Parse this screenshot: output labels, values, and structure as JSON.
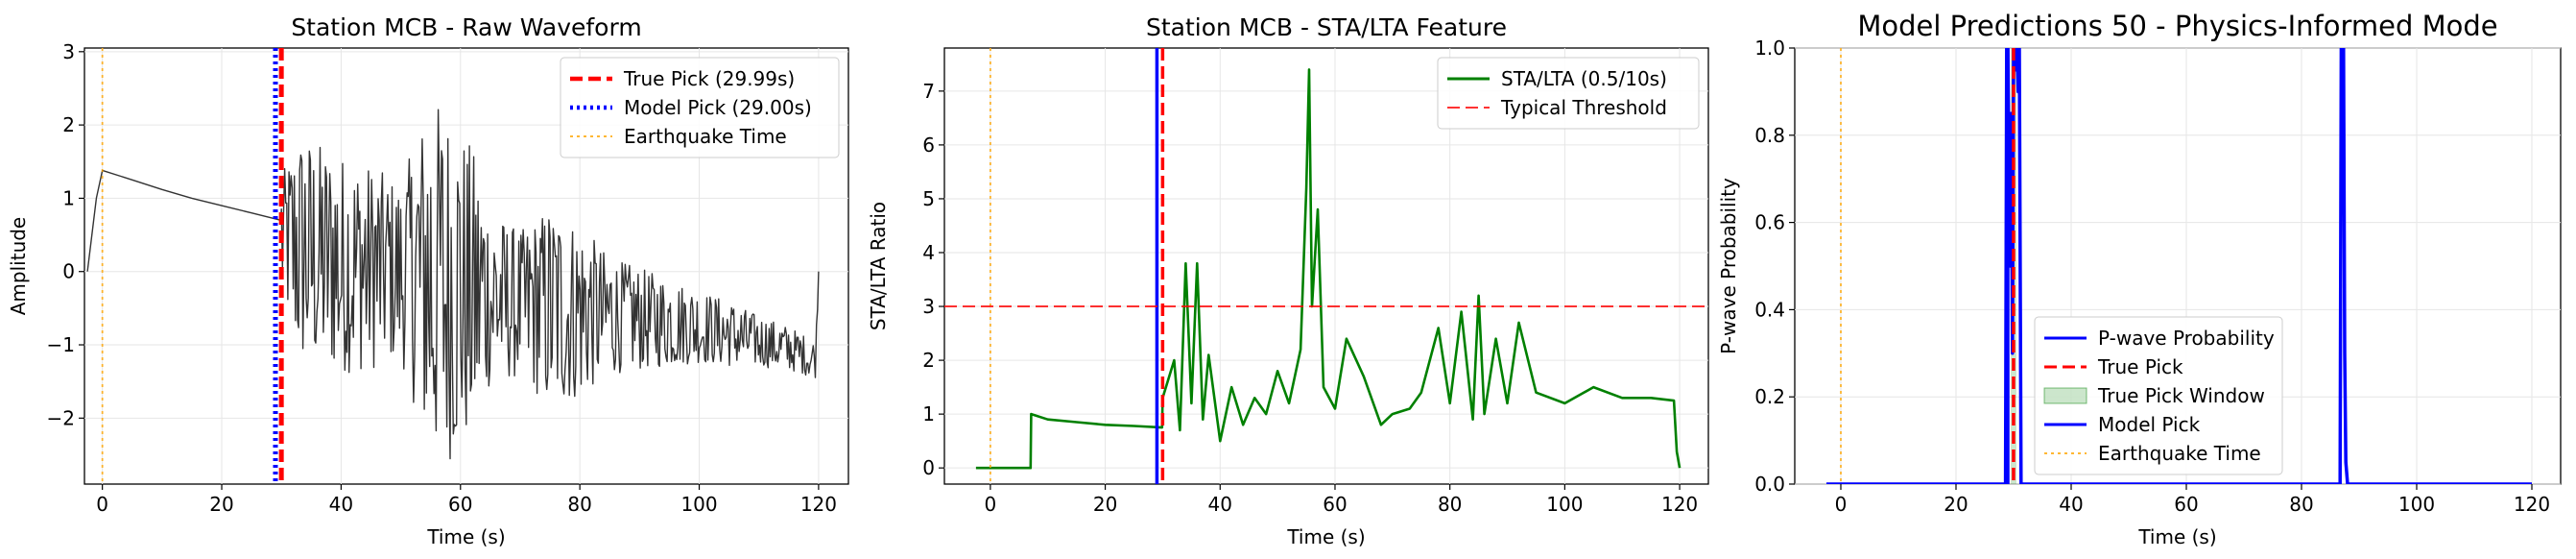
{
  "chart_data": [
    {
      "type": "line",
      "title": "Station MCB - Raw Waveform",
      "xlabel": "Time (s)",
      "ylabel": "Amplitude",
      "xlim": [
        -3,
        125
      ],
      "ylim": [
        -2.9,
        3.05
      ],
      "xticks": [
        0,
        20,
        40,
        60,
        80,
        100,
        120
      ],
      "yticks": [
        -2,
        -1,
        0,
        1,
        2,
        3
      ],
      "grid": true,
      "legend_position": "top-right",
      "series": [
        {
          "name": "Waveform",
          "color": "#333333",
          "x": [
            -2.5,
            -1,
            0,
            5,
            10,
            15,
            20,
            25,
            29.9
          ],
          "y": [
            0.0,
            1.0,
            1.38,
            1.25,
            1.12,
            1.0,
            0.9,
            0.8,
            0.7
          ],
          "noise_envelope": {
            "x": [
              30,
              33,
              40,
              45,
              50,
              55,
              58,
              62,
              65,
              70,
              75,
              80,
              85,
              90,
              100,
              105,
              110,
              115,
              119.5,
              120
            ],
            "center": [
              0.5,
              0.3,
              0.1,
              0.05,
              0.0,
              -0.1,
              -0.2,
              -0.3,
              -0.35,
              -0.45,
              -0.5,
              -0.55,
              -0.6,
              -0.65,
              -0.75,
              -0.85,
              -0.95,
              -1.05,
              -1.2,
              0.0
            ],
            "half_range": [
              0.8,
              1.6,
              1.5,
              1.4,
              1.2,
              2.5,
              2.4,
              2.0,
              1.2,
              1.0,
              1.4,
              1.2,
              0.8,
              0.7,
              0.5,
              0.45,
              0.35,
              0.3,
              0.25,
              0.0
            ]
          }
        },
        {
          "name": "True Pick (29.99s)",
          "type": "vline",
          "x": 29.99,
          "color": "#ff0000",
          "style": "dashed"
        },
        {
          "name": "Model Pick (29.00s)",
          "type": "vline",
          "x": 29.0,
          "color": "#0000ff",
          "style": "dotted"
        },
        {
          "name": "Earthquake Time",
          "type": "vline",
          "x": 0,
          "color": "#ffa500",
          "style": "dotted"
        }
      ],
      "legend": [
        {
          "label": "True Pick (29.99s)",
          "color": "#ff0000",
          "style": "dashed"
        },
        {
          "label": "Model Pick (29.00s)",
          "color": "#0000ff",
          "style": "dotted"
        },
        {
          "label": "Earthquake Time",
          "color": "#ffa500",
          "style": "dotted"
        }
      ]
    },
    {
      "type": "line",
      "title": "Station MCB - STA/LTA Feature",
      "xlabel": "Time (s)",
      "ylabel": "STA/LTA Ratio",
      "xlim": [
        -8,
        125
      ],
      "ylim": [
        -0.3,
        7.8
      ],
      "xticks": [
        0,
        20,
        40,
        60,
        80,
        100,
        120
      ],
      "yticks": [
        0,
        1,
        2,
        3,
        4,
        5,
        6,
        7
      ],
      "grid": true,
      "legend_position": "top-right",
      "series": [
        {
          "name": "STA/LTA (0.5/10s)",
          "color": "#008000",
          "x": [
            -2.5,
            7,
            7.1,
            10,
            15,
            20,
            25,
            29.9,
            30,
            32,
            33,
            34,
            35,
            36,
            37,
            38,
            40,
            42,
            44,
            46,
            48,
            50,
            52,
            54,
            55,
            55.5,
            56,
            57,
            58,
            60,
            62,
            65,
            68,
            70,
            73,
            75,
            78,
            80,
            82,
            84,
            85,
            86,
            88,
            90,
            92,
            95,
            100,
            105,
            110,
            115,
            119,
            119.5,
            120
          ],
          "y": [
            0.0,
            0.0,
            1.0,
            0.9,
            0.85,
            0.8,
            0.78,
            0.75,
            1.3,
            2.0,
            0.7,
            3.8,
            1.2,
            3.8,
            0.9,
            2.1,
            0.5,
            1.5,
            0.8,
            1.3,
            1.0,
            1.8,
            1.2,
            2.2,
            5.2,
            7.4,
            3.0,
            4.8,
            1.5,
            1.1,
            2.4,
            1.7,
            0.8,
            1.0,
            1.1,
            1.4,
            2.6,
            1.2,
            2.9,
            0.9,
            3.2,
            1.0,
            2.4,
            1.2,
            2.7,
            1.4,
            1.2,
            1.5,
            1.3,
            1.3,
            1.25,
            0.3,
            0.0
          ]
        },
        {
          "name": "Typical Threshold",
          "type": "hline",
          "y": 3,
          "color": "#ff0000",
          "style": "dashed"
        },
        {
          "name": "True Pick",
          "type": "vline",
          "x": 29.99,
          "color": "#ff0000",
          "style": "dashed"
        },
        {
          "name": "Model Pick",
          "type": "vline",
          "x": 29.0,
          "color": "#0000ff",
          "style": "solid"
        },
        {
          "name": "Earthquake Time",
          "type": "vline",
          "x": 0,
          "color": "#ffa500",
          "style": "dotted"
        }
      ],
      "legend": [
        {
          "label": "STA/LTA (0.5/10s)",
          "color": "#008000",
          "style": "solid"
        },
        {
          "label": "Typical Threshold",
          "color": "#ff0000",
          "style": "dashed"
        }
      ]
    },
    {
      "type": "line",
      "title": "Model Predictions 50 - Physics-Informed Mode",
      "xlabel": "Time (s)",
      "ylabel": "P-wave Probability",
      "xlim": [
        -8,
        125
      ],
      "ylim": [
        0,
        1
      ],
      "xticks": [
        0,
        20,
        40,
        60,
        80,
        100,
        120
      ],
      "yticks": [
        0.0,
        0.2,
        0.4,
        0.6,
        0.8,
        1.0
      ],
      "grid": true,
      "legend_position": "lower-center",
      "series": [
        {
          "name": "P-wave Probability",
          "color": "#0000ff",
          "x": [
            -2.5,
            28.6,
            28.8,
            29.0,
            29.4,
            29.6,
            29.8,
            30.0,
            30.3,
            30.6,
            30.8,
            31.0,
            31.3,
            86.7,
            86.9,
            87.1,
            87.3,
            87.5,
            87.7,
            88.0,
            120
          ],
          "y": [
            0.0,
            0.0,
            1.0,
            1.0,
            0.5,
            0.85,
            0.3,
            1.0,
            0.95,
            1.0,
            0.9,
            1.0,
            0.0,
            0.0,
            1.0,
            1.0,
            1.0,
            0.3,
            0.05,
            0.0,
            0.0
          ]
        },
        {
          "name": "True Pick",
          "type": "vline",
          "x": 29.99,
          "color": "#ff0000",
          "style": "dashed"
        },
        {
          "name": "True Pick Window",
          "type": "span",
          "x": [
            29.5,
            30.5
          ],
          "color": "#008000",
          "alpha": 0.2
        },
        {
          "name": "Model Pick",
          "type": "vline",
          "x": 29.0,
          "color": "#0000ff",
          "style": "solid"
        },
        {
          "name": "Earthquake Time",
          "type": "vline",
          "x": 0,
          "color": "#ffa500",
          "style": "dotted"
        }
      ],
      "legend": [
        {
          "label": "P-wave Probability",
          "color": "#0000ff",
          "style": "solid"
        },
        {
          "label": "True Pick",
          "color": "#ff0000",
          "style": "dashed"
        },
        {
          "label": "True Pick Window",
          "color": "#008000",
          "style": "patch"
        },
        {
          "label": "Model Pick",
          "color": "#0000ff",
          "style": "solid"
        },
        {
          "label": "Earthquake Time",
          "color": "#ffa500",
          "style": "dotted"
        }
      ]
    }
  ]
}
